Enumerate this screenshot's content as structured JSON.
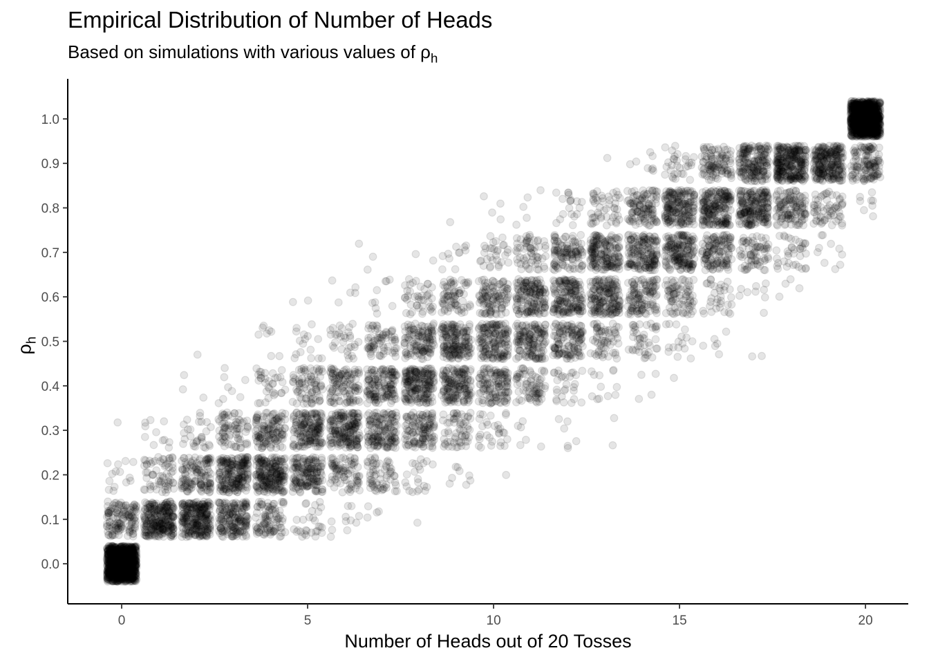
{
  "chart_data": {
    "type": "scatter",
    "title": "Empirical Distribution of Number of Heads",
    "subtitle_prefix": "Based on simulations with various values of ",
    "subtitle_symbol": "ρ",
    "subtitle_subscript": "h",
    "xlabel": "Number of Heads out of 20 Tosses",
    "ylabel_symbol": "ρ",
    "ylabel_subscript": "h",
    "xlim": [
      -1.45,
      21.15
    ],
    "ylim": [
      -0.09,
      1.09
    ],
    "x_ticks": [
      0,
      5,
      10,
      15,
      20
    ],
    "x_tick_labels": [
      "0",
      "5",
      "10",
      "15",
      "20"
    ],
    "y_ticks": [
      0.0,
      0.1,
      0.2,
      0.3,
      0.4,
      0.5,
      0.6,
      0.7,
      0.8,
      0.9,
      1.0
    ],
    "y_tick_labels": [
      "0.0",
      "0.1",
      "0.2",
      "0.3",
      "0.4",
      "0.5",
      "0.6",
      "0.7",
      "0.8",
      "0.9",
      "1.0"
    ],
    "n_tosses": 20,
    "rho_values": [
      0.0,
      0.1,
      0.2,
      0.3,
      0.4,
      0.5,
      0.6,
      0.7,
      0.8,
      0.9,
      1.0
    ],
    "simulations_per_rho": 1000,
    "jitter_width": 0.4,
    "jitter_height": 0.04,
    "point_alpha": 0.1,
    "point_color": "#000000",
    "grid": false,
    "legend": "none"
  }
}
